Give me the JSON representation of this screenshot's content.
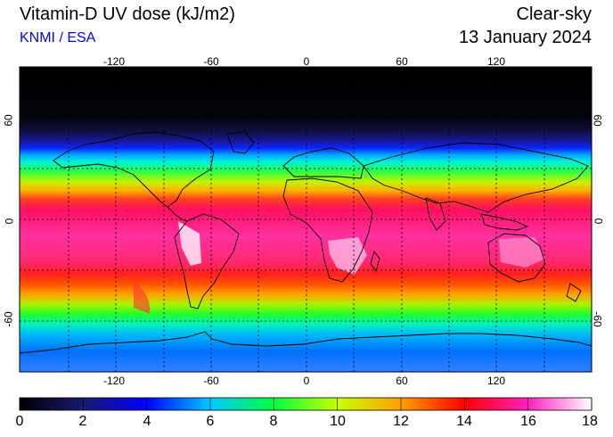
{
  "header": {
    "title": "Vitamin-D UV dose (kJ/m2)",
    "credit": "KNMI / ESA",
    "mode": "Clear-sky",
    "date": "13 January 2024",
    "credit_color": "#0000ee"
  },
  "map": {
    "lon_ticks": [
      "-120",
      "-60",
      "0",
      "60",
      "120"
    ],
    "lat_ticks": [
      "60",
      "0",
      "-60"
    ],
    "gridlines": "dashed every 30 degrees",
    "band_colors_north_to_south": [
      {
        "lat": 90,
        "color": "#000000"
      },
      {
        "lat": 60,
        "color": "#04040c"
      },
      {
        "lat": 52,
        "color": "#101040"
      },
      {
        "lat": 46,
        "color": "#1818a0"
      },
      {
        "lat": 42,
        "color": "#0a28ff"
      },
      {
        "lat": 38,
        "color": "#00a8ff"
      },
      {
        "lat": 34,
        "color": "#00f0d8"
      },
      {
        "lat": 28,
        "color": "#30ff40"
      },
      {
        "lat": 22,
        "color": "#c8f000"
      },
      {
        "lat": 17,
        "color": "#ffb000"
      },
      {
        "lat": 12,
        "color": "#ff4020"
      },
      {
        "lat": 6,
        "color": "#ff1060"
      },
      {
        "lat": -10,
        "color": "#ff30a0"
      },
      {
        "lat": -25,
        "color": "#ff2870"
      },
      {
        "lat": -32,
        "color": "#ff2020"
      },
      {
        "lat": -38,
        "color": "#ff5000"
      },
      {
        "lat": -44,
        "color": "#ffa000"
      },
      {
        "lat": -50,
        "color": "#b0f000"
      },
      {
        "lat": -56,
        "color": "#20ff30"
      },
      {
        "lat": -62,
        "color": "#00f0c0"
      },
      {
        "lat": -68,
        "color": "#00b8f8"
      },
      {
        "lat": -78,
        "color": "#0070ff"
      },
      {
        "lat": -90,
        "color": "#3080ff"
      }
    ]
  },
  "colorbar": {
    "labels": [
      "0",
      "2",
      "4",
      "6",
      "8",
      "10",
      "12",
      "14",
      "16",
      "18"
    ],
    "range": [
      0,
      18
    ],
    "stops": [
      "#000000",
      "#1a1a70",
      "#0000ff",
      "#00c8ff",
      "#00ff40",
      "#c8ff00",
      "#ffa000",
      "#ff0000",
      "#ff20c0",
      "#ffffff"
    ]
  }
}
